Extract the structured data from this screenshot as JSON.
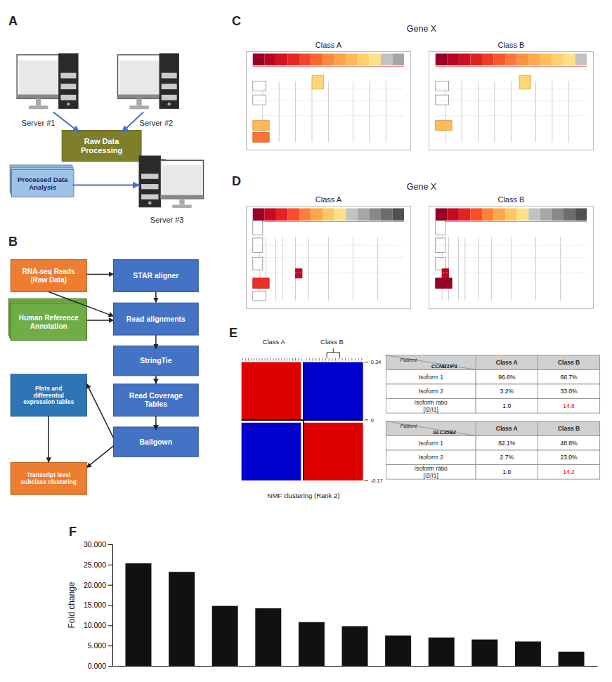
{
  "chart_data": [
    {
      "type": "diagram",
      "title": "A",
      "annotations": [
        "Server #1",
        "Server #2",
        "Raw Data\nProcessing",
        "Server #3",
        "Processed Data\nAnalysis"
      ],
      "color": "#4472c4",
      "colors": [
        "#555555",
        "#555555",
        "#7f7f2a",
        "#555555",
        "#9dc3e6"
      ]
    },
    {
      "type": "diagram",
      "title": "B",
      "annotations": [
        "RNA-seq Reads\n(Raw Data)",
        "STAR aligner",
        "Human Reference\nAnnotation",
        "Read alignments",
        "StringTie",
        "Read Coverage\nTables",
        "Ballgown",
        "Plots and\ndifferential\nexpression tables",
        "Transcript level\nsubclass clustering"
      ],
      "colors": [
        "#ed7d31",
        "#4472c4",
        "#70ad47",
        "#4472c4",
        "#4472c4",
        "#4472c4",
        "#4472c4",
        "#2e75b6",
        "#ed7d31"
      ]
    },
    {
      "type": "diagram",
      "title": "C",
      "subtitle": "Gene X",
      "annotations": [
        "Class A",
        "Class B"
      ]
    },
    {
      "type": "diagram",
      "title": "D",
      "subtitle": "Gene X",
      "annotations": [
        "Class A",
        "Class B"
      ]
    },
    {
      "type": "heatmap",
      "title": "E",
      "xlabel": "NMF clustering (Rank 2)",
      "categories": [
        "Class A",
        "Class B"
      ],
      "colors": [
        "#dd0000",
        "#0000cc",
        "#0000cc",
        "#dd0000"
      ],
      "colorbar_ticks": [
        0.34,
        0,
        -0.17
      ]
    },
    {
      "type": "table",
      "title": "CCNB1IP1",
      "annotations": [
        "Patient"
      ],
      "categories": [
        "Isoform 1",
        "Isoform 2",
        "Isoform ratio\n[I2/I1]"
      ],
      "series": [
        {
          "name": "Class A",
          "values": [
            96.6,
            3.2,
            1.0
          ],
          "value_labels": [
            "96.6%",
            "3.2%",
            "1.0"
          ],
          "colors": [
            "#000000",
            "#000000",
            "#000000"
          ]
        },
        {
          "name": "Class B",
          "values": [
            66.7,
            33.0,
            14.8
          ],
          "value_labels": [
            "66.7%",
            "33.0%",
            "14.8"
          ],
          "colors": [
            "#000000",
            "#000000",
            "red"
          ]
        }
      ]
    },
    {
      "type": "table",
      "title": "SLC35B2",
      "annotations": [
        "Patient"
      ],
      "categories": [
        "Isoform 1",
        "Isoform 2",
        "Isoform ratio\n[I2/I1]"
      ],
      "series": [
        {
          "name": "Class A",
          "values": [
            82.1,
            2.7,
            1.0
          ],
          "value_labels": [
            "82.1%",
            "2.7%",
            "1.0"
          ],
          "colors": [
            "#000000",
            "#000000",
            "#000000"
          ]
        },
        {
          "name": "Class B",
          "values": [
            48.8,
            23.0,
            14.2
          ],
          "value_labels": [
            "48.8%",
            "23.0%",
            "14.2"
          ],
          "colors": [
            "#000000",
            "#000000",
            "red"
          ]
        }
      ]
    },
    {
      "type": "bar",
      "title": "F",
      "categories": [
        null,
        null,
        null,
        null,
        null,
        null,
        null,
        null,
        null,
        null,
        null
      ],
      "values": [
        25.3,
        23.2,
        14.8,
        14.2,
        10.8,
        9.8,
        7.5,
        7.0,
        6.5,
        6.0,
        3.5
      ],
      "color": "#111111",
      "ylabel": "Fold change",
      "ylim": [
        0,
        30
      ],
      "yticks": [
        {
          "value": 0,
          "label": "0.000"
        },
        {
          "value": 5,
          "label": "5.000"
        },
        {
          "value": 10,
          "label": "10.000"
        },
        {
          "value": 15,
          "label": "15.000"
        },
        {
          "value": 20,
          "label": "20.000"
        },
        {
          "value": 25,
          "label": "25.000"
        },
        {
          "value": 30,
          "label": "30.000"
        }
      ],
      "grid": false,
      "tick_labels": "y"
    }
  ]
}
